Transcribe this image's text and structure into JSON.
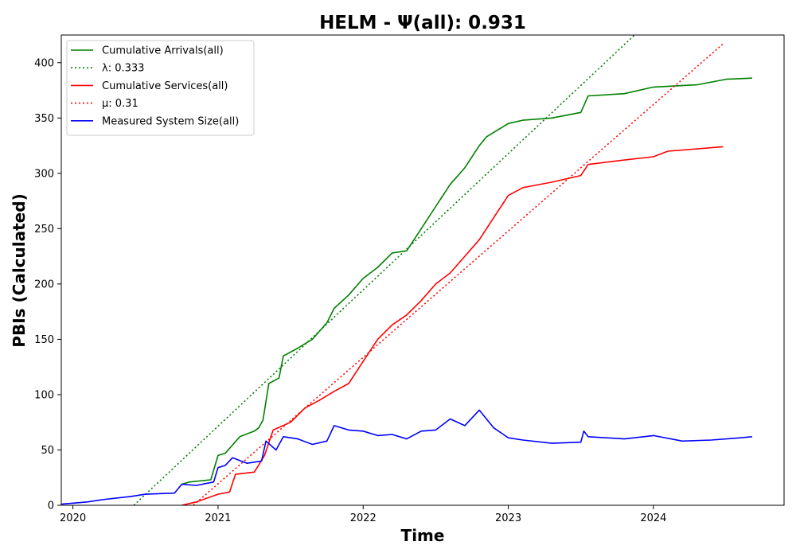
{
  "chart_data": {
    "type": "line",
    "title": "HELM -  Ψ(all): 0.931",
    "xlabel": "Time",
    "ylabel": "PBIs (Calculated)",
    "xlim": [
      2019.92,
      2024.9
    ],
    "ylim": [
      0,
      425
    ],
    "x_ticks": [
      2020,
      2021,
      2022,
      2023,
      2024
    ],
    "x_tick_labels": [
      "2020",
      "2021",
      "2022",
      "2023",
      "2024"
    ],
    "y_ticks": [
      0,
      50,
      100,
      150,
      200,
      250,
      300,
      350,
      400
    ],
    "y_tick_labels": [
      "0",
      "50",
      "100",
      "150",
      "200",
      "250",
      "300",
      "350",
      "400"
    ],
    "grid": false,
    "legend_position": "upper-left",
    "series": [
      {
        "name": "Cumulative Arrivals(all)",
        "color": "#008000",
        "style": "solid",
        "points": [
          [
            2020.75,
            19
          ],
          [
            2020.8,
            21
          ],
          [
            2020.95,
            23
          ],
          [
            2021.0,
            45
          ],
          [
            2021.05,
            47
          ],
          [
            2021.15,
            62
          ],
          [
            2021.25,
            67
          ],
          [
            2021.28,
            70
          ],
          [
            2021.31,
            77
          ],
          [
            2021.35,
            110
          ],
          [
            2021.42,
            115
          ],
          [
            2021.45,
            135
          ],
          [
            2021.55,
            142
          ],
          [
            2021.65,
            150
          ],
          [
            2021.75,
            165
          ],
          [
            2021.8,
            178
          ],
          [
            2021.9,
            190
          ],
          [
            2022.0,
            205
          ],
          [
            2022.1,
            215
          ],
          [
            2022.2,
            228
          ],
          [
            2022.3,
            230
          ],
          [
            2022.4,
            250
          ],
          [
            2022.5,
            270
          ],
          [
            2022.6,
            290
          ],
          [
            2022.7,
            305
          ],
          [
            2022.8,
            325
          ],
          [
            2022.85,
            333
          ],
          [
            2023.0,
            345
          ],
          [
            2023.1,
            348
          ],
          [
            2023.3,
            350
          ],
          [
            2023.5,
            355
          ],
          [
            2023.55,
            370
          ],
          [
            2023.8,
            372
          ],
          [
            2024.0,
            378
          ],
          [
            2024.3,
            380
          ],
          [
            2024.5,
            385
          ],
          [
            2024.68,
            386
          ]
        ]
      },
      {
        "name": "λ: 0.333",
        "color": "#008000",
        "style": "dotted",
        "points": [
          [
            2020.42,
            0
          ],
          [
            2023.87,
            425
          ]
        ]
      },
      {
        "name": "Cumulative Services(all)",
        "color": "#ff0000",
        "style": "solid",
        "points": [
          [
            2020.75,
            0
          ],
          [
            2020.85,
            3
          ],
          [
            2021.0,
            10
          ],
          [
            2021.08,
            12
          ],
          [
            2021.12,
            28
          ],
          [
            2021.25,
            30
          ],
          [
            2021.32,
            45
          ],
          [
            2021.38,
            68
          ],
          [
            2021.5,
            75
          ],
          [
            2021.6,
            88
          ],
          [
            2021.7,
            95
          ],
          [
            2021.8,
            103
          ],
          [
            2021.9,
            110
          ],
          [
            2022.0,
            130
          ],
          [
            2022.1,
            150
          ],
          [
            2022.2,
            163
          ],
          [
            2022.3,
            172
          ],
          [
            2022.4,
            185
          ],
          [
            2022.5,
            200
          ],
          [
            2022.6,
            210
          ],
          [
            2022.7,
            225
          ],
          [
            2022.8,
            240
          ],
          [
            2022.9,
            260
          ],
          [
            2023.0,
            280
          ],
          [
            2023.1,
            287
          ],
          [
            2023.3,
            292
          ],
          [
            2023.5,
            298
          ],
          [
            2023.55,
            308
          ],
          [
            2023.8,
            312
          ],
          [
            2024.0,
            315
          ],
          [
            2024.1,
            320
          ],
          [
            2024.48,
            324
          ]
        ]
      },
      {
        "name": "μ: 0.31",
        "color": "#ff0000",
        "style": "dotted",
        "points": [
          [
            2020.83,
            0
          ],
          [
            2024.48,
            417
          ]
        ]
      },
      {
        "name": "Measured System Size(all)",
        "color": "#0000ff",
        "style": "solid",
        "points": [
          [
            2019.92,
            1
          ],
          [
            2020.1,
            3
          ],
          [
            2020.2,
            5
          ],
          [
            2020.4,
            8
          ],
          [
            2020.5,
            10
          ],
          [
            2020.7,
            11
          ],
          [
            2020.75,
            19
          ],
          [
            2020.85,
            18
          ],
          [
            2020.97,
            21
          ],
          [
            2021.0,
            34
          ],
          [
            2021.05,
            36
          ],
          [
            2021.1,
            43
          ],
          [
            2021.2,
            38
          ],
          [
            2021.3,
            40
          ],
          [
            2021.33,
            58
          ],
          [
            2021.4,
            50
          ],
          [
            2021.45,
            62
          ],
          [
            2021.55,
            60
          ],
          [
            2021.65,
            55
          ],
          [
            2021.75,
            58
          ],
          [
            2021.8,
            72
          ],
          [
            2021.9,
            68
          ],
          [
            2022.0,
            67
          ],
          [
            2022.1,
            63
          ],
          [
            2022.2,
            64
          ],
          [
            2022.3,
            60
          ],
          [
            2022.4,
            67
          ],
          [
            2022.5,
            68
          ],
          [
            2022.6,
            78
          ],
          [
            2022.7,
            72
          ],
          [
            2022.8,
            86
          ],
          [
            2022.9,
            70
          ],
          [
            2023.0,
            61
          ],
          [
            2023.1,
            59
          ],
          [
            2023.3,
            56
          ],
          [
            2023.5,
            57
          ],
          [
            2023.52,
            67
          ],
          [
            2023.55,
            62
          ],
          [
            2023.8,
            60
          ],
          [
            2024.0,
            63
          ],
          [
            2024.2,
            58
          ],
          [
            2024.4,
            59
          ],
          [
            2024.6,
            61
          ],
          [
            2024.68,
            62
          ]
        ]
      }
    ]
  }
}
